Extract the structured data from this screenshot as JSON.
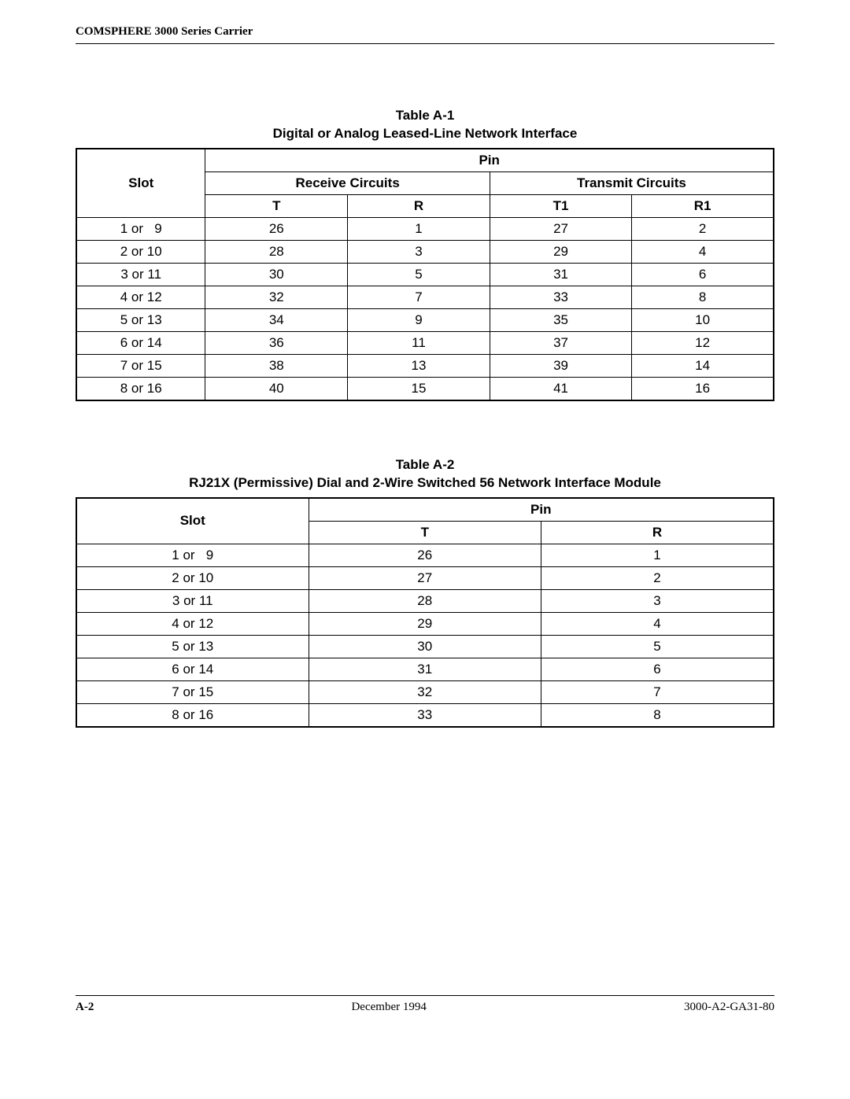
{
  "header": {
    "running_title": "COMSPHERE 3000 Series Carrier"
  },
  "table_a1": {
    "caption_line1": "Table A-1",
    "caption_line2": "Digital or Analog Leased-Line Network Interface",
    "headers": {
      "slot": "Slot",
      "pin": "Pin",
      "receive": "Receive Circuits",
      "transmit": "Transmit Circuits",
      "T": "T",
      "R": "R",
      "T1": "T1",
      "R1": "R1"
    },
    "rows": [
      {
        "slot": "1 or   9",
        "T": "26",
        "R": "1",
        "T1": "27",
        "R1": "2"
      },
      {
        "slot": "2 or 10",
        "T": "28",
        "R": "3",
        "T1": "29",
        "R1": "4"
      },
      {
        "slot": "3 or 11",
        "T": "30",
        "R": "5",
        "T1": "31",
        "R1": "6"
      },
      {
        "slot": "4 or 12",
        "T": "32",
        "R": "7",
        "T1": "33",
        "R1": "8"
      },
      {
        "slot": "5 or 13",
        "T": "34",
        "R": "9",
        "T1": "35",
        "R1": "10"
      },
      {
        "slot": "6 or 14",
        "T": "36",
        "R": "11",
        "T1": "37",
        "R1": "12"
      },
      {
        "slot": "7 or 15",
        "T": "38",
        "R": "13",
        "T1": "39",
        "R1": "14"
      },
      {
        "slot": "8 or 16",
        "T": "40",
        "R": "15",
        "T1": "41",
        "R1": "16"
      }
    ],
    "col_widths": [
      "18.5%",
      "20.4%",
      "20.4%",
      "20.35%",
      "20.35%"
    ]
  },
  "table_a2": {
    "caption_line1": "Table A-2",
    "caption_line2": "RJ21X (Permissive) Dial and 2-Wire Switched 56 Network Interface Module",
    "headers": {
      "slot": "Slot",
      "pin": "Pin",
      "T": "T",
      "R": "R"
    },
    "rows": [
      {
        "slot": "1 or   9",
        "T": "26",
        "R": "1"
      },
      {
        "slot": "2 or 10",
        "T": "27",
        "R": "2"
      },
      {
        "slot": "3 or 11",
        "T": "28",
        "R": "3"
      },
      {
        "slot": "4 or 12",
        "T": "29",
        "R": "4"
      },
      {
        "slot": "5 or 13",
        "T": "30",
        "R": "5"
      },
      {
        "slot": "6 or 14",
        "T": "31",
        "R": "6"
      },
      {
        "slot": "7 or 15",
        "T": "32",
        "R": "7"
      },
      {
        "slot": "8 or 16",
        "T": "33",
        "R": "8"
      }
    ],
    "col_widths": [
      "33.3%",
      "33.35%",
      "33.35%"
    ]
  },
  "footer": {
    "page_number": "A-2",
    "date": "December 1994",
    "doc_number": "3000-A2-GA31-80"
  }
}
